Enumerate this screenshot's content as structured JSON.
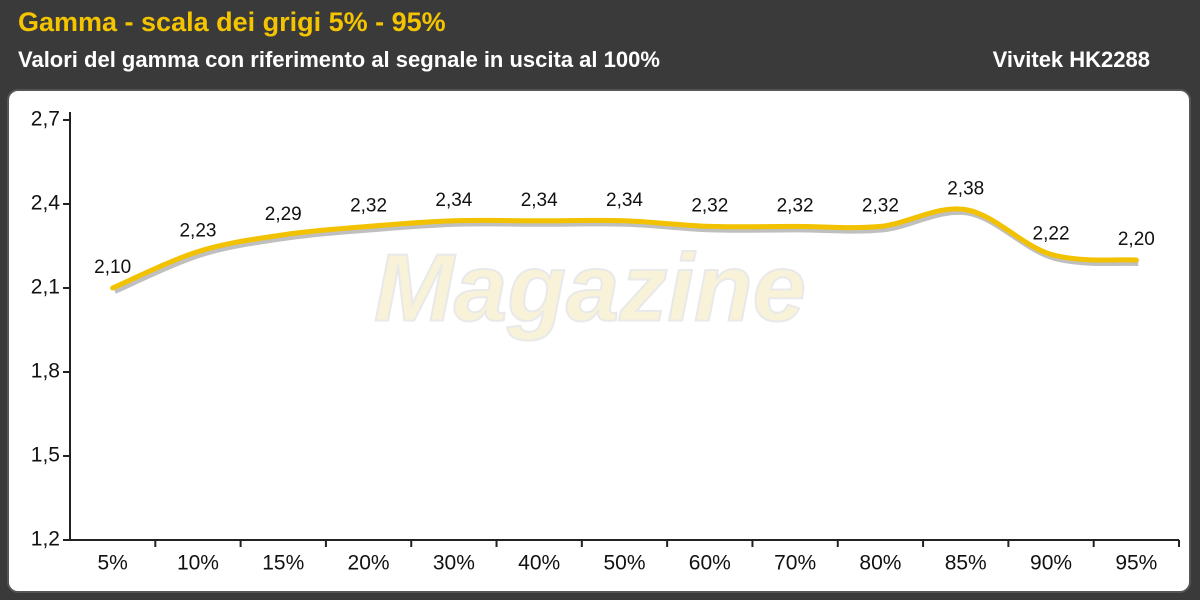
{
  "chart_data": {
    "type": "line",
    "title": "Gamma - scala dei grigi 5% - 95%",
    "subtitle": "Valori del gamma con riferimento al segnale in uscita al 100%",
    "device": "Vivitek HK2288",
    "watermark": "Magazine",
    "categories": [
      "5%",
      "10%",
      "15%",
      "20%",
      "30%",
      "40%",
      "50%",
      "60%",
      "70%",
      "80%",
      "85%",
      "90%",
      "95%"
    ],
    "series": [
      {
        "name": "Gamma",
        "color": "#f2c200",
        "values": [
          2.1,
          2.23,
          2.29,
          2.32,
          2.34,
          2.34,
          2.34,
          2.32,
          2.32,
          2.32,
          2.38,
          2.22,
          2.2
        ],
        "value_labels": [
          "2,10",
          "2,23",
          "2,29",
          "2,32",
          "2,34",
          "2,34",
          "2,34",
          "2,32",
          "2,32",
          "2,32",
          "2,38",
          "2,22",
          "2,20"
        ]
      }
    ],
    "ylim": [
      1.2,
      2.7
    ],
    "yticks": [
      {
        "value": 1.2,
        "label": "1,2"
      },
      {
        "value": 1.5,
        "label": "1,5"
      },
      {
        "value": 1.8,
        "label": "1,8"
      },
      {
        "value": 2.1,
        "label": "2,1"
      },
      {
        "value": 2.4,
        "label": "2,4"
      },
      {
        "value": 2.7,
        "label": "2,7"
      }
    ],
    "grid": false
  }
}
